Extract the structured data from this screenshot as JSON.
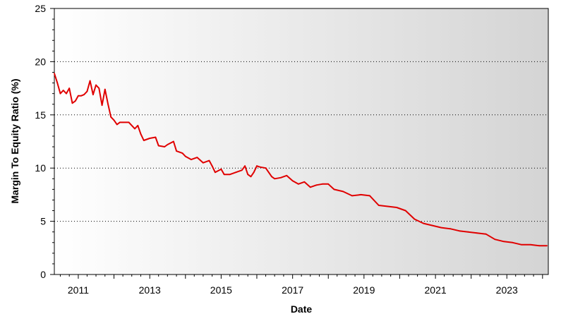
{
  "chart_data": {
    "type": "line",
    "title": "",
    "xlabel": "Date",
    "ylabel": "Margin To Equity Ratio (%)",
    "xlim": [
      "2010-05-01",
      "2024-02-29"
    ],
    "ylim": [
      0,
      25
    ],
    "x_ticks": [
      "2011",
      "2013",
      "2015",
      "2017",
      "2019",
      "2021",
      "2023"
    ],
    "y_ticks": [
      "0",
      "5",
      "10",
      "15",
      "20",
      "25"
    ],
    "grid": "horizontal dotted",
    "line_color": "#e00000",
    "series": [
      {
        "x": [
          "2010-05-01",
          "2010-06-01",
          "2010-07-01",
          "2010-08-01",
          "2010-09-01",
          "2010-10-01",
          "2010-11-01",
          "2010-12-01",
          "2011-01-01",
          "2011-02-01",
          "2011-03-01",
          "2011-04-01",
          "2011-05-01",
          "2011-06-01",
          "2011-07-01",
          "2011-08-01",
          "2011-09-01",
          "2011-10-01",
          "2011-11-01",
          "2011-12-01",
          "2012-01-01",
          "2012-02-01",
          "2012-03-01",
          "2012-04-01",
          "2012-06-01",
          "2012-08-01",
          "2012-09-01",
          "2012-10-01",
          "2012-11-01",
          "2013-01-01",
          "2013-03-01",
          "2013-04-01",
          "2013-06-01",
          "2013-07-01",
          "2013-09-01",
          "2013-10-01",
          "2013-12-01",
          "2014-01-01",
          "2014-03-01",
          "2014-05-01",
          "2014-07-01",
          "2014-09-01",
          "2014-10-01",
          "2014-11-01",
          "2015-01-01",
          "2015-02-01",
          "2015-04-01",
          "2015-06-01",
          "2015-08-01",
          "2015-09-01",
          "2015-10-01",
          "2015-11-01",
          "2015-12-01",
          "2016-01-01",
          "2016-02-01",
          "2016-04-01",
          "2016-06-01",
          "2016-07-01",
          "2016-09-01",
          "2016-11-01",
          "2017-01-01",
          "2017-03-01",
          "2017-05-01",
          "2017-07-01",
          "2017-09-01",
          "2017-11-01",
          "2018-01-01",
          "2018-03-01",
          "2018-06-01",
          "2018-09-01",
          "2018-12-01",
          "2019-03-01",
          "2019-06-01",
          "2019-09-01",
          "2019-12-01",
          "2020-03-01",
          "2020-06-01",
          "2020-09-01",
          "2020-12-01",
          "2021-03-01",
          "2021-06-01",
          "2021-09-01",
          "2021-12-01",
          "2022-03-01",
          "2022-06-01",
          "2022-09-01",
          "2022-12-01",
          "2023-03-01",
          "2023-06-01",
          "2023-09-01",
          "2023-12-01",
          "2024-02-15"
        ],
        "values": [
          18.9,
          18.0,
          17.0,
          17.3,
          17.0,
          17.5,
          16.1,
          16.3,
          16.8,
          16.8,
          16.9,
          17.2,
          18.2,
          16.9,
          17.8,
          17.5,
          15.9,
          17.4,
          16.0,
          14.8,
          14.5,
          14.1,
          14.3,
          14.3,
          14.3,
          13.7,
          14.0,
          13.2,
          12.6,
          12.8,
          12.9,
          12.1,
          12.0,
          12.2,
          12.5,
          11.6,
          11.4,
          11.1,
          10.8,
          11.0,
          10.5,
          10.7,
          10.2,
          9.6,
          9.9,
          9.4,
          9.4,
          9.6,
          9.8,
          10.2,
          9.4,
          9.2,
          9.6,
          10.2,
          10.1,
          10.0,
          9.2,
          9.0,
          9.1,
          9.3,
          8.8,
          8.5,
          8.7,
          8.2,
          8.4,
          8.5,
          8.5,
          8.0,
          7.8,
          7.4,
          7.5,
          7.4,
          6.5,
          6.4,
          6.3,
          6.0,
          5.2,
          4.8,
          4.6,
          4.4,
          4.3,
          4.1,
          4.0,
          3.9,
          3.8,
          3.3,
          3.1,
          3.0,
          2.8,
          2.8,
          2.7,
          2.7
        ]
      }
    ]
  }
}
